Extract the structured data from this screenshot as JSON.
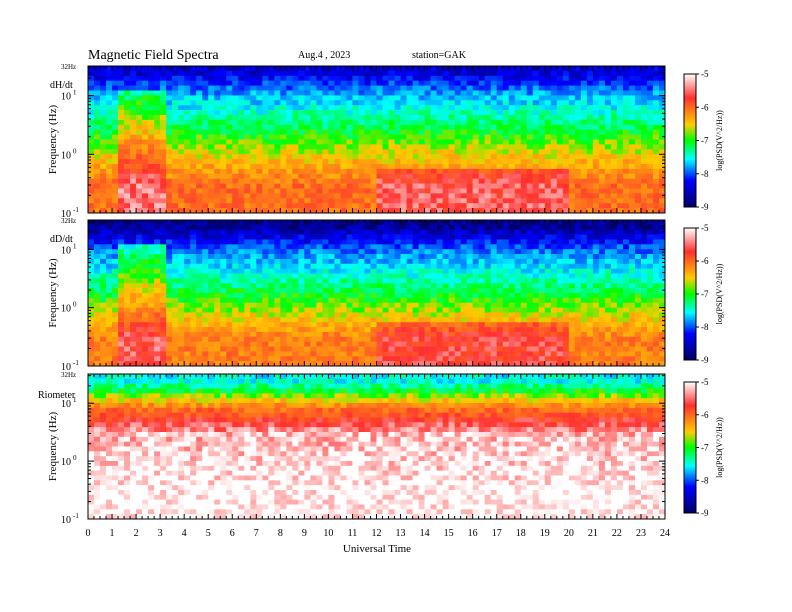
{
  "header": {
    "title": "Magnetic  Field  Spectra",
    "date": "Aug.4  , 2023",
    "station": "station=GAK"
  },
  "x_axis": {
    "label": "Universal  Time",
    "ticks": [
      "0",
      "1",
      "2",
      "3",
      "4",
      "5",
      "6",
      "7",
      "8",
      "9",
      "10",
      "11",
      "12",
      "13",
      "14",
      "15",
      "16",
      "17",
      "18",
      "19",
      "20",
      "21",
      "22",
      "23",
      "24"
    ]
  },
  "y_axis": {
    "label": "Frequency  (Hz)",
    "top_label": "32Hz",
    "tick_labels": {
      "decade_1": "10",
      "decade_1_exp": "1",
      "decade_0": "10",
      "decade_0_exp": "0",
      "decade_m1": "10",
      "decade_m1_exp": "-1"
    }
  },
  "colorbar": {
    "label": "log(PSD(V^2/Hz))",
    "ticks": [
      "-5",
      "-6",
      "-7",
      "-8",
      "-9"
    ],
    "colors": [
      "#ffffff",
      "#ff2020",
      "#ffff00",
      "#00ff00",
      "#00ffff",
      "#0000ff",
      "#000066"
    ]
  },
  "chart_data": [
    {
      "type": "heatmap",
      "panel_label": "dH/dt",
      "x_range_hours": [
        0,
        24
      ],
      "y_range_hz": [
        0.1,
        32
      ],
      "y_scale": "log",
      "color_range_log_psd": [
        -9,
        -5
      ],
      "description_bands": [
        {
          "freq_hz": 25,
          "log_psd": -8.5
        },
        {
          "freq_hz": 10,
          "log_psd": -7.8
        },
        {
          "freq_hz": 3,
          "log_psd": -7.2
        },
        {
          "freq_hz": 1,
          "log_psd": -6.6
        },
        {
          "freq_hz": 0.3,
          "log_psd": -6.0
        }
      ]
    },
    {
      "type": "heatmap",
      "panel_label": "dD/dt",
      "x_range_hours": [
        0,
        24
      ],
      "y_range_hz": [
        0.1,
        32
      ],
      "y_scale": "log",
      "color_range_log_psd": [
        -9,
        -5
      ],
      "description_bands": [
        {
          "freq_hz": 25,
          "log_psd": -8.8
        },
        {
          "freq_hz": 10,
          "log_psd": -8.0
        },
        {
          "freq_hz": 3,
          "log_psd": -7.4
        },
        {
          "freq_hz": 1,
          "log_psd": -6.8
        },
        {
          "freq_hz": 0.3,
          "log_psd": -6.1
        }
      ]
    },
    {
      "type": "heatmap",
      "panel_label": "Riometer",
      "x_range_hours": [
        0,
        24
      ],
      "y_range_hz": [
        0.1,
        32
      ],
      "y_scale": "log",
      "color_range_log_psd": [
        -9,
        -5
      ],
      "description_bands": [
        {
          "freq_hz": 25,
          "log_psd": -7.6
        },
        {
          "freq_hz": 15,
          "log_psd": -7.0
        },
        {
          "freq_hz": 8,
          "log_psd": -6.0
        },
        {
          "freq_hz": 3,
          "log_psd": -5.2
        },
        {
          "freq_hz": 0.3,
          "log_psd": -5.0
        }
      ]
    }
  ]
}
